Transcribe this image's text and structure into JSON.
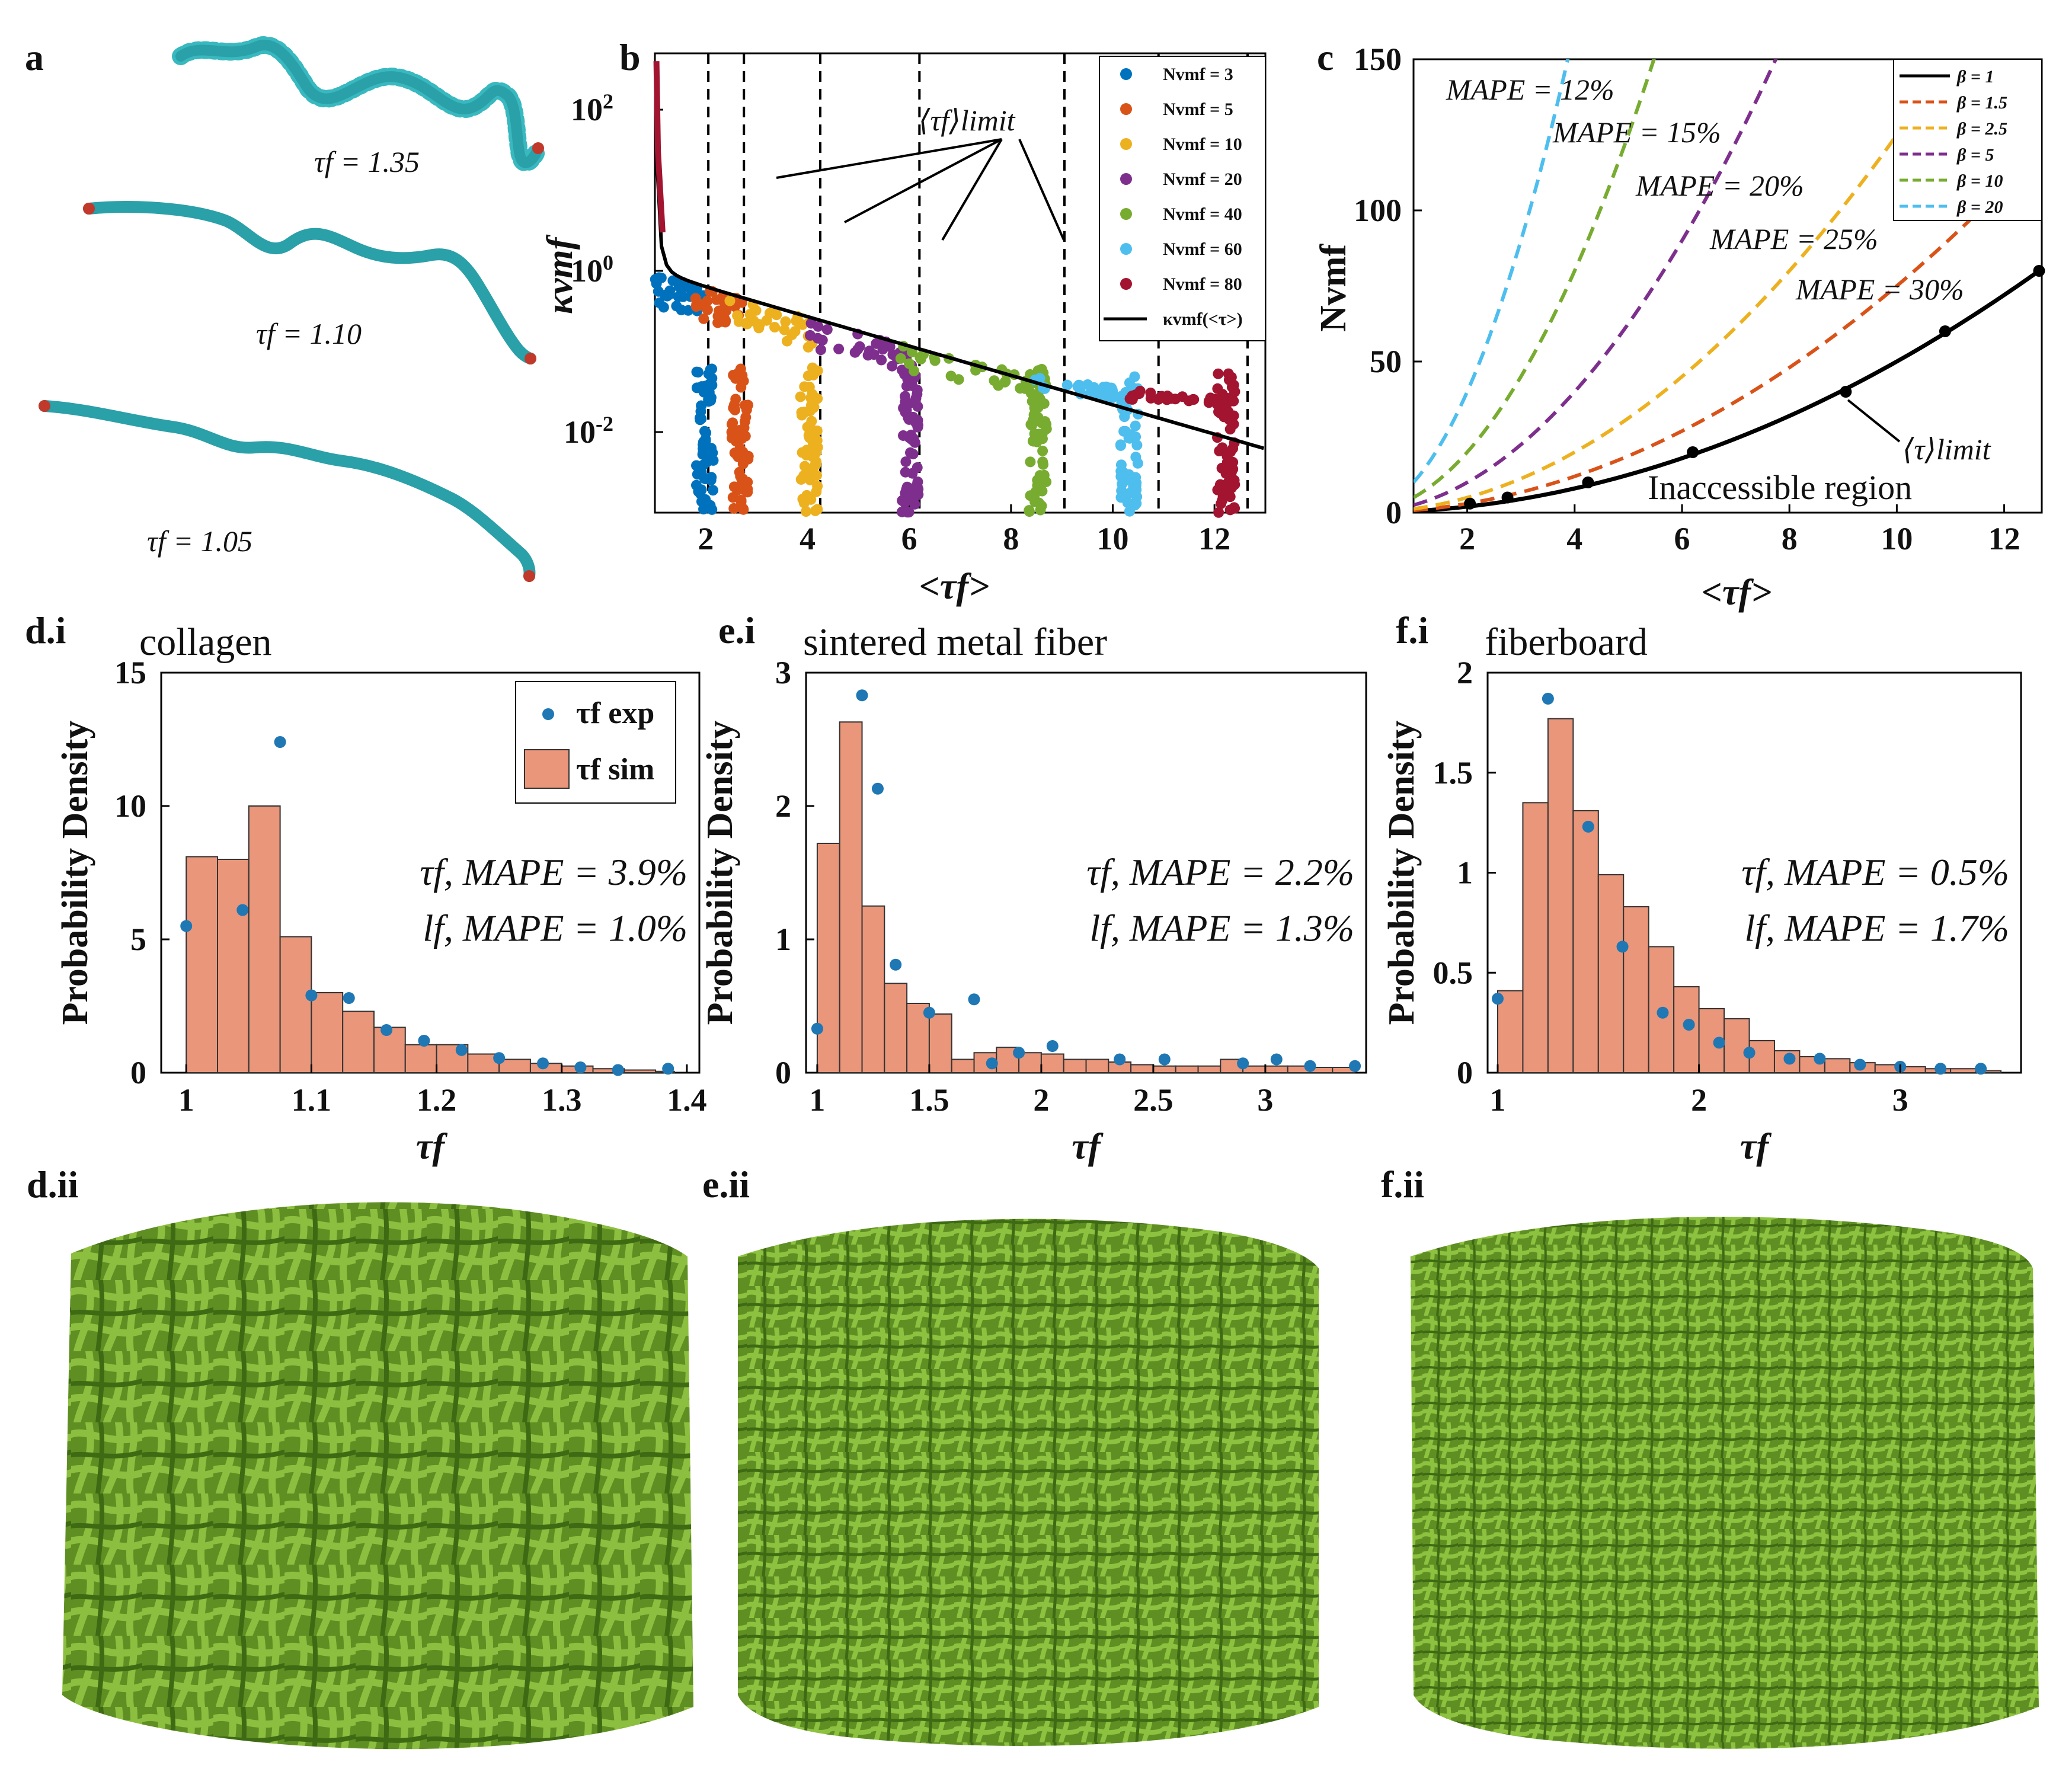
{
  "panel_labels": {
    "a": "a",
    "b": "b",
    "c": "c",
    "di": "d.i",
    "ei": "e.i",
    "fi": "f.i",
    "dii": "d.ii",
    "eii": "e.ii",
    "fii": "f.ii"
  },
  "panel_a": {
    "labels": [
      "τf = 1.35",
      "τf = 1.10",
      "τf = 1.05"
    ]
  },
  "colors": {
    "bead": "#38b8bf",
    "bead_dark": "#c0392b",
    "hist": "#e9967a",
    "dot": "#1f77b4",
    "fiber": "#6a9a2a"
  },
  "chart_data": [
    {
      "id": "b",
      "type": "scatter",
      "yscale": "log",
      "xlabel": "<τf>",
      "ylabel": "κvmf",
      "xlim": [
        1,
        13
      ],
      "ylim": [
        0.001,
        500
      ],
      "xticks": [
        2,
        4,
        6,
        8,
        10,
        12
      ],
      "yticks_text": [
        "10^-2",
        "10^0",
        "10^2"
      ],
      "annotation": "⟨τf⟩limit",
      "vlines": [
        2.05,
        2.75,
        4.25,
        6.2,
        9.05,
        10.9,
        12.65
      ],
      "legend": [
        {
          "label": "Nvmf = 3",
          "color": "#0072bd"
        },
        {
          "label": "Nvmf = 5",
          "color": "#d95319"
        },
        {
          "label": "Nvmf = 10",
          "color": "#edb120"
        },
        {
          "label": "Nvmf = 20",
          "color": "#7e2f8e"
        },
        {
          "label": "Nvmf = 40",
          "color": "#77ac30"
        },
        {
          "label": "Nvmf = 60",
          "color": "#4dbeee"
        },
        {
          "label": "Nvmf = 80",
          "color": "#a2142f"
        },
        {
          "label": "κvmf(<τ>)",
          "color": "#000000"
        }
      ],
      "clusters": [
        {
          "x": 2.05,
          "xmin": 1.0,
          "color": "#0072bd"
        },
        {
          "x": 2.75,
          "xmin": 1.8,
          "color": "#d95319"
        },
        {
          "x": 4.1,
          "xmin": 2.4,
          "color": "#edb120"
        },
        {
          "x": 6.1,
          "xmin": 4.0,
          "color": "#7e2f8e"
        },
        {
          "x": 8.6,
          "xmin": 5.8,
          "color": "#77ac30"
        },
        {
          "x": 10.4,
          "xmin": 8.4,
          "color": "#4dbeee"
        },
        {
          "x": 12.3,
          "xmin": 10.2,
          "color": "#a2142f"
        }
      ]
    },
    {
      "id": "c",
      "type": "line",
      "xlabel": "<τf>",
      "ylabel": "Nvmf",
      "xlim": [
        1,
        12.7
      ],
      "ylim": [
        0,
        150
      ],
      "xticks": [
        2,
        4,
        6,
        8,
        10,
        12
      ],
      "yticks": [
        0,
        50,
        100,
        150
      ],
      "series": [
        {
          "name": "β = 1",
          "beta": 1,
          "color": "#000000",
          "dash": false
        },
        {
          "name": "β = 1.5",
          "beta": 1.5,
          "color": "#d95319",
          "dash": true
        },
        {
          "name": "β = 2.5",
          "beta": 2.5,
          "color": "#edb120",
          "dash": true
        },
        {
          "name": "β = 5",
          "beta": 5,
          "color": "#7e2f8e",
          "dash": true
        },
        {
          "name": "β = 10",
          "beta": 10,
          "color": "#77ac30",
          "dash": true
        },
        {
          "name": "β = 20",
          "beta": 20,
          "color": "#4dbeee",
          "dash": true
        }
      ],
      "points": {
        "x": [
          2.05,
          2.75,
          4.25,
          6.2,
          9.05,
          10.9,
          12.65
        ],
        "y": [
          3,
          5,
          10,
          20,
          40,
          60,
          80
        ]
      },
      "annotations": [
        "MAPE = 12%",
        "MAPE = 15%",
        "MAPE = 20%",
        "MAPE = 25%",
        "MAPE = 30%",
        "⟨τ⟩limit",
        "Inaccessible region"
      ]
    },
    {
      "id": "d.i",
      "type": "bar",
      "title": "collagen",
      "xlabel": "τf",
      "ylabel": "Probability Density",
      "xlim": [
        0.98,
        1.41
      ],
      "ylim": [
        0,
        15
      ],
      "xticks": [
        "1",
        "1.1",
        "1.2",
        "1.3",
        "1.4"
      ],
      "yticks": [
        "0",
        "5",
        "10",
        "15"
      ],
      "bin_edges": [
        1.0,
        1.025,
        1.05,
        1.075,
        1.1,
        1.125,
        1.15,
        1.175,
        1.2,
        1.225,
        1.25,
        1.275,
        1.3,
        1.325,
        1.35,
        1.375,
        1.39
      ],
      "hist": [
        8.1,
        8.0,
        10.0,
        5.1,
        3.0,
        2.3,
        1.7,
        1.05,
        1.05,
        0.7,
        0.5,
        0.35,
        0.25,
        0.15,
        0.1,
        0.05
      ],
      "exp_x": [
        1.0,
        1.045,
        1.075,
        1.1,
        1.13,
        1.16,
        1.19,
        1.22,
        1.25,
        1.285,
        1.315,
        1.345,
        1.385
      ],
      "exp_y": [
        5.5,
        6.1,
        12.4,
        2.9,
        2.8,
        1.6,
        1.2,
        0.85,
        0.55,
        0.35,
        0.2,
        0.1,
        0.15
      ],
      "legend": [
        "τf exp",
        "τf sim"
      ],
      "mape_tau": "τf, MAPE = 3.9%",
      "mape_l": "lf, MAPE = 1.0%"
    },
    {
      "id": "e.i",
      "type": "bar",
      "title": "sintered metal fiber",
      "xlabel": "τf",
      "ylabel": "Probability Density",
      "xlim": [
        0.95,
        3.45
      ],
      "ylim": [
        0,
        3
      ],
      "xticks": [
        "1",
        "1.5",
        "2",
        "2.5",
        "3"
      ],
      "yticks": [
        "0",
        "1",
        "2",
        "3"
      ],
      "bin_edges": [
        1.0,
        1.1,
        1.2,
        1.3,
        1.4,
        1.5,
        1.6,
        1.7,
        1.8,
        1.9,
        2.0,
        2.1,
        2.2,
        2.3,
        2.4,
        2.5,
        2.6,
        2.7,
        2.8,
        2.9,
        3.0,
        3.1,
        3.2,
        3.3,
        3.4
      ],
      "hist": [
        1.72,
        2.63,
        1.25,
        0.67,
        0.52,
        0.44,
        0.1,
        0.15,
        0.19,
        0.15,
        0.14,
        0.1,
        0.1,
        0.08,
        0.06,
        0.05,
        0.05,
        0.05,
        0.1,
        0.05,
        0.05,
        0.05,
        0.04,
        0.04
      ],
      "exp_x": [
        1.0,
        1.2,
        1.27,
        1.35,
        1.5,
        1.7,
        1.78,
        1.9,
        2.05,
        2.35,
        2.55,
        2.9,
        3.05,
        3.2,
        3.4
      ],
      "exp_y": [
        0.33,
        2.83,
        2.13,
        0.81,
        0.45,
        0.55,
        0.07,
        0.15,
        0.2,
        0.1,
        0.1,
        0.07,
        0.1,
        0.05,
        0.05
      ],
      "legend": [
        "τf exp",
        "τf sim"
      ],
      "mape_tau": "τf, MAPE = 2.2%",
      "mape_l": "lf, MAPE = 1.3%"
    },
    {
      "id": "f.i",
      "type": "bar",
      "title": "fiberboard",
      "xlabel": "τf",
      "ylabel": "Probability Density",
      "xlim": [
        0.95,
        3.6
      ],
      "ylim": [
        0,
        2
      ],
      "xticks": [
        "1",
        "2",
        "3"
      ],
      "yticks": [
        "0",
        "0.5",
        "1",
        "1.5",
        "2"
      ],
      "bin_edges": [
        1.0,
        1.125,
        1.25,
        1.375,
        1.5,
        1.625,
        1.75,
        1.875,
        2.0,
        2.125,
        2.25,
        2.375,
        2.5,
        2.625,
        2.75,
        2.875,
        3.0,
        3.125,
        3.25,
        3.375,
        3.5
      ],
      "hist": [
        0.41,
        1.35,
        1.77,
        1.31,
        0.99,
        0.83,
        0.63,
        0.43,
        0.32,
        0.27,
        0.16,
        0.11,
        0.08,
        0.07,
        0.05,
        0.04,
        0.03,
        0.02,
        0.02,
        0.01
      ],
      "exp_x": [
        1.0,
        1.25,
        1.45,
        1.62,
        1.82,
        1.95,
        2.1,
        2.25,
        2.45,
        2.6,
        2.8,
        3.0,
        3.2,
        3.4
      ],
      "exp_y": [
        0.37,
        1.87,
        1.23,
        0.63,
        0.3,
        0.24,
        0.15,
        0.1,
        0.07,
        0.07,
        0.04,
        0.03,
        0.02,
        0.02
      ],
      "legend": [
        "τf exp",
        "τf sim"
      ],
      "mape_tau": "τf, MAPE = 0.5%",
      "mape_l": "lf, MAPE = 1.7%"
    }
  ]
}
